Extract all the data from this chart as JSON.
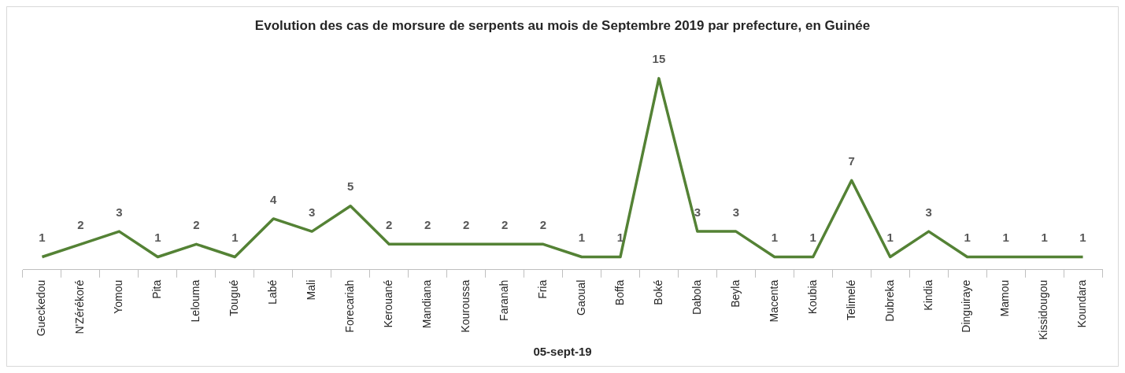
{
  "chart_data": {
    "type": "line",
    "title": "Evolution des cas de morsure de serpents au mois de Septembre 2019 par prefecture, en Guinée",
    "xlabel": "05-sept-19",
    "categories": [
      "Gueckedou",
      "N'Zérékoré",
      "Yomou",
      "Pita",
      "Lelouma",
      "Tougué",
      "Labé",
      "Mali",
      "Forecariah",
      "Kerouané",
      "Mandiana",
      "Kouroussa",
      "Faranah",
      "Fria",
      "Gaoual",
      "Boffa",
      "Boké",
      "Dabola",
      "Beyla",
      "Macenta",
      "Koubia",
      "Telimelé",
      "Dubreka",
      "Kindia",
      "Dinguiraye",
      "Mamou",
      "Kissidougou",
      "Koundara"
    ],
    "series": [
      {
        "color": "#548235",
        "values": [
          1,
          2,
          3,
          1,
          2,
          1,
          4,
          3,
          5,
          2,
          2,
          2,
          2,
          2,
          1,
          1,
          15,
          3,
          3,
          1,
          1,
          7,
          1,
          3,
          1,
          1,
          1,
          1
        ]
      }
    ],
    "data_labels": true,
    "legend": false,
    "grid": false,
    "marker": "none",
    "line_style": "solid"
  }
}
